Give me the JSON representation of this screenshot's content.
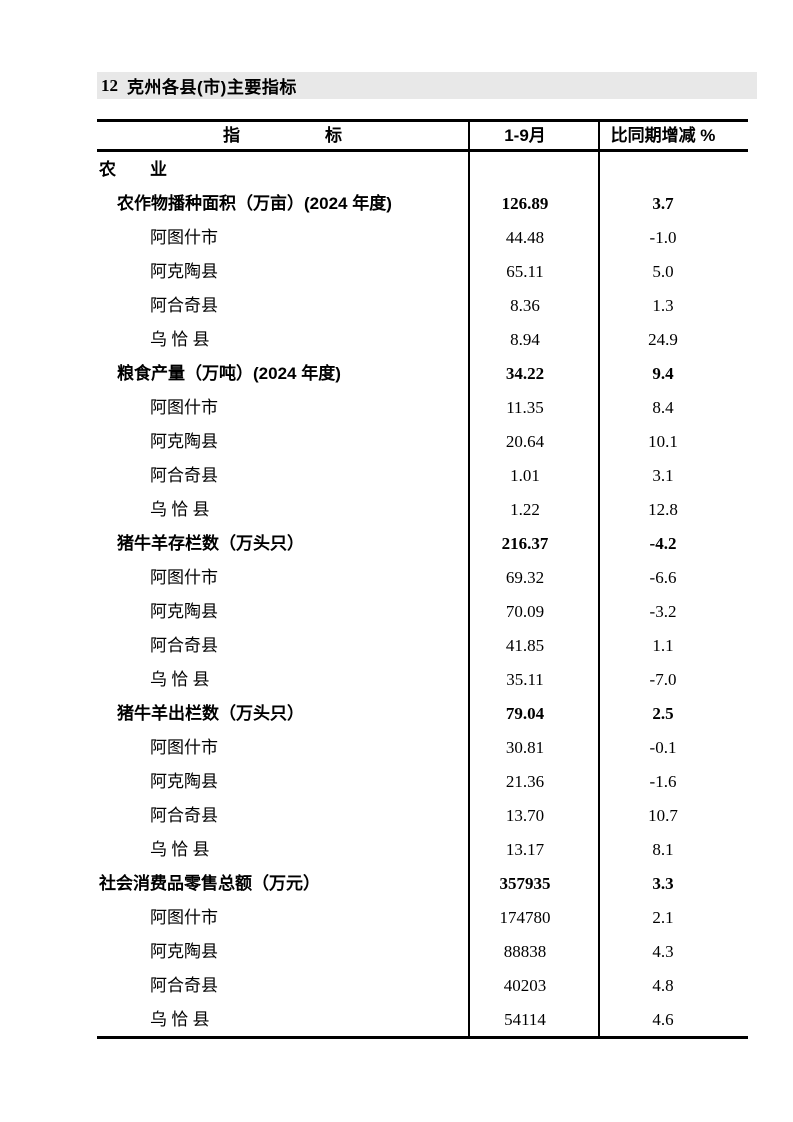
{
  "page_header": {
    "number": "12",
    "title": "克州各县(市)主要指标"
  },
  "colors": {
    "title_bar_bg": "#e8e8e8",
    "table_border": "#000000",
    "text": "#000000"
  },
  "table": {
    "header": {
      "indicator": "指　　　　　标",
      "period": "1-9月",
      "change": "比同期增减 %"
    },
    "rows": [
      {
        "label": "农　　业",
        "v1": "",
        "v2": ""
      },
      {
        "label": "农作物播种面积（万亩）(2024 年度)",
        "v1": "126.89",
        "v2": "3.7"
      },
      {
        "label": "阿图什市",
        "v1": "44.48",
        "v2": "-1.0"
      },
      {
        "label": "阿克陶县",
        "v1": "65.11",
        "v2": "5.0"
      },
      {
        "label": "阿合奇县",
        "v1": "8.36",
        "v2": "1.3"
      },
      {
        "label": "乌 恰 县",
        "v1": "8.94",
        "v2": "24.9"
      },
      {
        "label": "粮食产量（万吨）(2024 年度)",
        "v1": "34.22",
        "v2": "9.4"
      },
      {
        "label": "阿图什市",
        "v1": "11.35",
        "v2": "8.4"
      },
      {
        "label": "阿克陶县",
        "v1": "20.64",
        "v2": "10.1"
      },
      {
        "label": "阿合奇县",
        "v1": "1.01",
        "v2": "3.1"
      },
      {
        "label": "乌 恰 县",
        "v1": "1.22",
        "v2": "12.8"
      },
      {
        "label": "猪牛羊存栏数（万头只）",
        "v1": "216.37",
        "v2": "-4.2"
      },
      {
        "label": "阿图什市",
        "v1": "69.32",
        "v2": "-6.6"
      },
      {
        "label": "阿克陶县",
        "v1": "70.09",
        "v2": "-3.2"
      },
      {
        "label": "阿合奇县",
        "v1": "41.85",
        "v2": "1.1"
      },
      {
        "label": "乌 恰 县",
        "v1": "35.11",
        "v2": "-7.0"
      },
      {
        "label": "猪牛羊出栏数（万头只）",
        "v1": "79.04",
        "v2": "2.5"
      },
      {
        "label": "阿图什市",
        "v1": "30.81",
        "v2": "-0.1"
      },
      {
        "label": "阿克陶县",
        "v1": "21.36",
        "v2": "-1.6"
      },
      {
        "label": "阿合奇县",
        "v1": "13.70",
        "v2": "10.7"
      },
      {
        "label": "乌 恰 县",
        "v1": "13.17",
        "v2": "8.1"
      },
      {
        "label": "社会消费品零售总额（万元）",
        "v1": "357935",
        "v2": "3.3"
      },
      {
        "label": "阿图什市",
        "v1": "174780",
        "v2": "2.1"
      },
      {
        "label": "阿克陶县",
        "v1": "88838",
        "v2": "4.3"
      },
      {
        "label": "阿合奇县",
        "v1": "40203",
        "v2": "4.8"
      },
      {
        "label": "乌 恰 县",
        "v1": "54114",
        "v2": "4.6"
      }
    ]
  }
}
